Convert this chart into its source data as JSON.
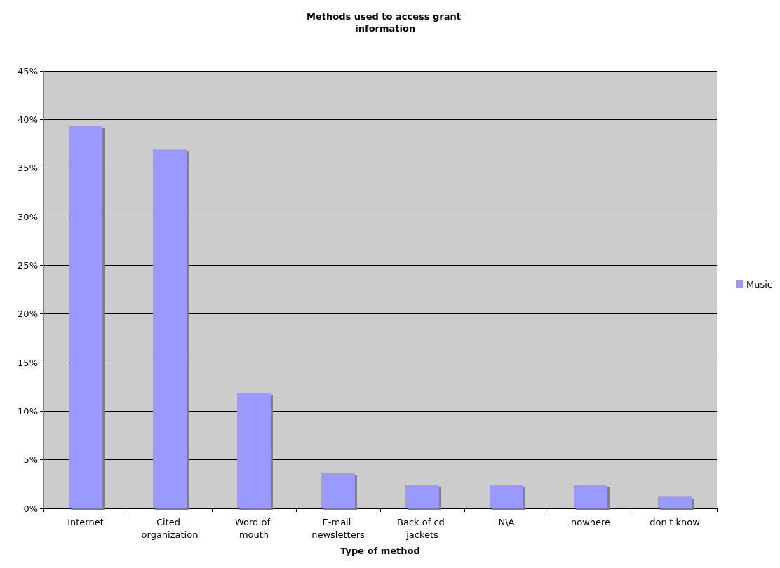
{
  "chart_data": {
    "type": "bar",
    "title": "Methods used to access grant information",
    "xlabel": "Type of method",
    "categories": [
      "Internet",
      "Cited organization",
      "Word of mouth",
      "E-mail newsletters",
      "Back of cd jackets",
      "N\\A",
      "nowhere",
      "don't know"
    ],
    "series": [
      {
        "name": "Music",
        "color": "#9999ff",
        "values": [
          39.3,
          36.9,
          11.9,
          3.6,
          2.4,
          2.4,
          2.4,
          1.2
        ]
      }
    ],
    "ylim": [
      0,
      45
    ],
    "yticks": [
      {
        "value": 0,
        "label": "0%"
      },
      {
        "value": 5,
        "label": "5%"
      },
      {
        "value": 10,
        "label": "10%"
      },
      {
        "value": 15,
        "label": "15%"
      },
      {
        "value": 20,
        "label": "20%"
      },
      {
        "value": 25,
        "label": "25%"
      },
      {
        "value": 30,
        "label": "30%"
      },
      {
        "value": 35,
        "label": "35%"
      },
      {
        "value": 40,
        "label": "40%"
      },
      {
        "value": 45,
        "label": "45%"
      }
    ],
    "grid": "y",
    "legend": "right"
  }
}
